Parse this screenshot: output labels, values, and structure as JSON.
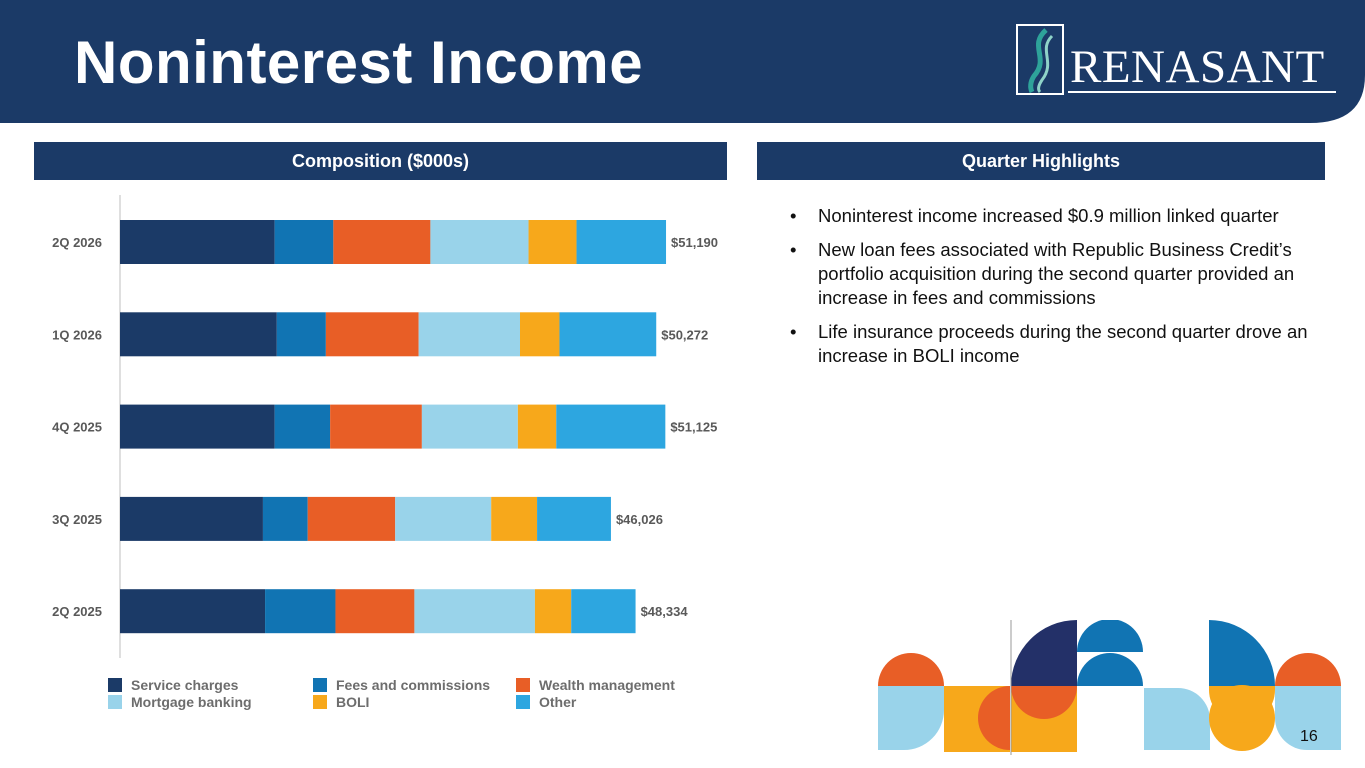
{
  "header": {
    "title": "Noninterest Income",
    "logo_text": "RENASANT",
    "background": "#1b3a67"
  },
  "sections": {
    "left_title": "Composition ($000s)",
    "right_title": "Quarter Highlights"
  },
  "chart_data": {
    "type": "bar",
    "orientation": "horizontal",
    "stacked": true,
    "title": "Composition ($000s)",
    "categories": [
      "2Q 2026",
      "1Q 2026",
      "4Q 2025",
      "3Q 2025",
      "2Q 2025"
    ],
    "totals": [
      51190,
      50272,
      51125,
      46026,
      48334
    ],
    "total_labels": [
      "$51,190",
      "$50,272",
      "$51,125",
      "$46,026",
      "$48,334"
    ],
    "series": [
      {
        "name": "Service charges",
        "color": "#1b3a67",
        "values": [
          14500,
          14700,
          14500,
          13400,
          13600
        ]
      },
      {
        "name": "Fees and commissions",
        "color": "#1174b3",
        "values": [
          5500,
          4600,
          5200,
          4200,
          6600
        ]
      },
      {
        "name": "Wealth management",
        "color": "#e85e26",
        "values": [
          9100,
          8700,
          8600,
          8200,
          7400
        ]
      },
      {
        "name": "Mortgage banking",
        "color": "#99d3ea",
        "values": [
          9200,
          9500,
          9000,
          9000,
          11300
        ]
      },
      {
        "name": "BOLI",
        "color": "#f7a81b",
        "values": [
          4500,
          3700,
          3600,
          4300,
          3400
        ]
      },
      {
        "name": "Other",
        "color": "#2da6e0",
        "values": [
          8390,
          9072,
          10225,
          6926,
          6034
        ]
      }
    ],
    "xlim": [
      0,
      60000
    ],
    "grid": false,
    "legend_position": "bottom"
  },
  "highlights": [
    "Noninterest income increased $0.9 million linked quarter",
    "New loan fees associated with Republic Business Credit’s portfolio acquisition during the second quarter provided an increase in fees and commissions",
    "Life insurance proceeds during the second quarter drove an increase in BOLI income"
  ],
  "bullet_glyph": "•",
  "page_number": "16"
}
